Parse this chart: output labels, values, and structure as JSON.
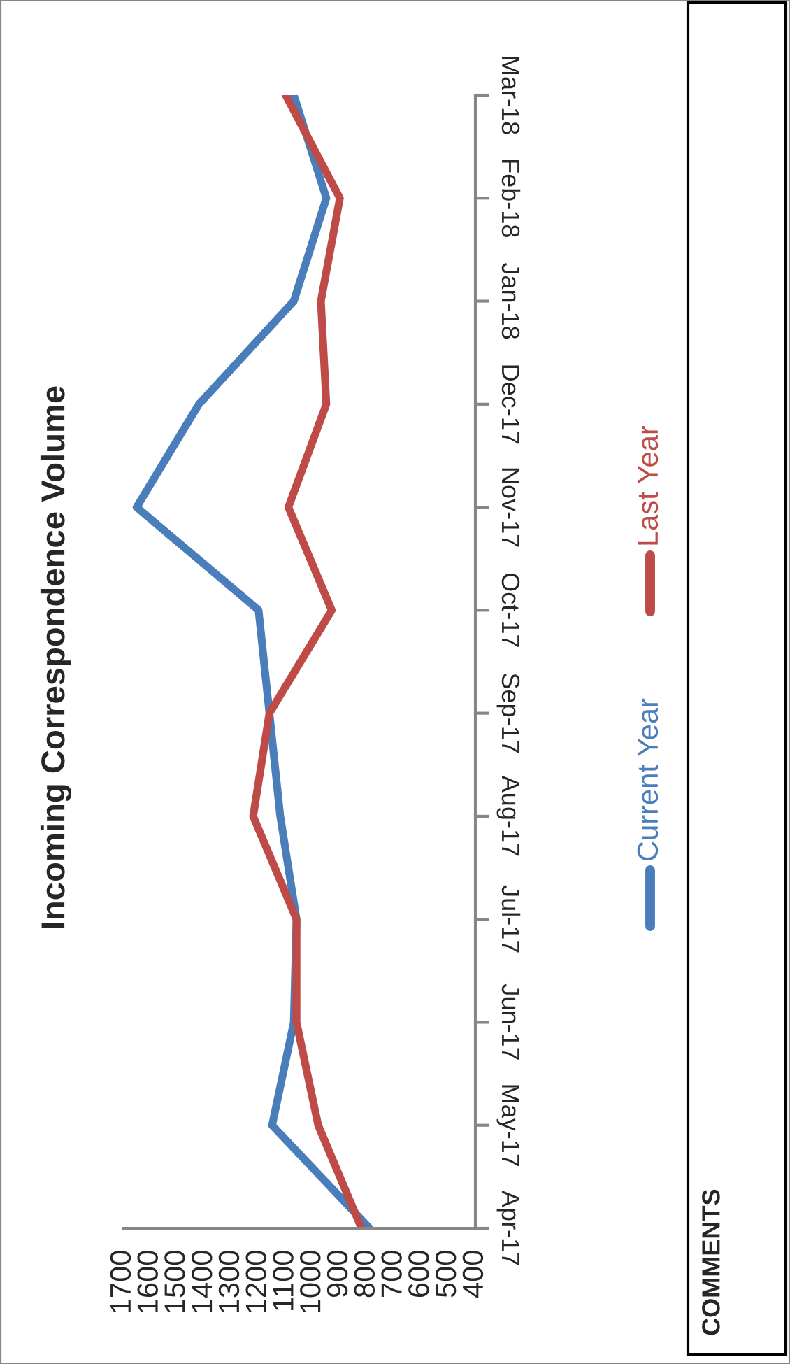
{
  "chart_data": {
    "type": "line",
    "title": "Incoming Correspondence Volume",
    "orientation": "horizontal",
    "categories": [
      "Mar-18",
      "Feb-18",
      "Jan-18",
      "Dec-17",
      "Nov-17",
      "Oct-17",
      "Sep-17",
      "Aug-17",
      "Jul-17",
      "Jun-17",
      "May-17",
      "Apr-17"
    ],
    "series": [
      {
        "name": "Current Year",
        "color": "#4a7ebb",
        "values": [
          1070,
          950,
          1070,
          1420,
          1650,
          1200,
          1160,
          1120,
          1060,
          1070,
          1150,
          790
        ]
      },
      {
        "name": "Last Year",
        "color": "#be4b48",
        "values": [
          1100,
          900,
          970,
          950,
          1090,
          930,
          1160,
          1220,
          1060,
          1060,
          980,
          820
        ]
      }
    ],
    "xlim": [
      1700,
      400
    ],
    "xticks": [
      1700,
      1600,
      1500,
      1400,
      1300,
      1200,
      1100,
      1000,
      900,
      800,
      700,
      600,
      500,
      400
    ],
    "grid": false,
    "legend": "right",
    "marker": "none",
    "line_style": "solid",
    "annotations": [
      "COMMENTS"
    ]
  }
}
